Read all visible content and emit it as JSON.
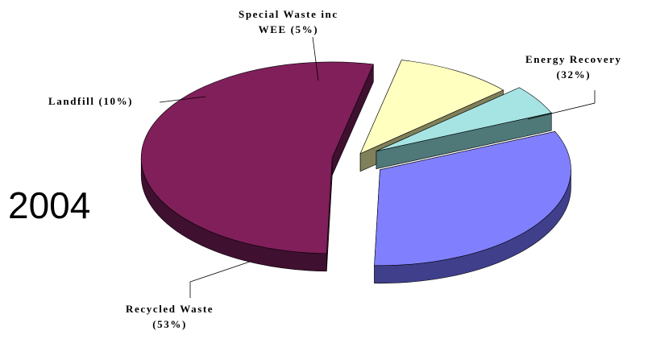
{
  "year_label": "2004",
  "chart_data": {
    "type": "pie",
    "style": "3d-exploded",
    "title": "",
    "slices": [
      {
        "label": "Energy Recovery",
        "line1": "Energy Recovery",
        "line2": "(32%)",
        "value": 32,
        "top_color": "#8080ff",
        "side_color": "#3f3f8c"
      },
      {
        "label": "Special Waste inc WEE",
        "line1": "Special Waste inc",
        "line2": "WEE (5%)",
        "value": 5,
        "top_color": "#a6e4e4",
        "side_color": "#4f7878"
      },
      {
        "label": "Landfill",
        "line1": "Landfill (10%)",
        "line2": "",
        "value": 10,
        "top_color": "#ffffc0",
        "side_color": "#80805a"
      },
      {
        "label": "Recycled Waste",
        "line1": "Recycled Waste",
        "line2": "(53%)",
        "value": 53,
        "top_color": "#801f5a",
        "side_color": "#3f1030"
      }
    ]
  }
}
